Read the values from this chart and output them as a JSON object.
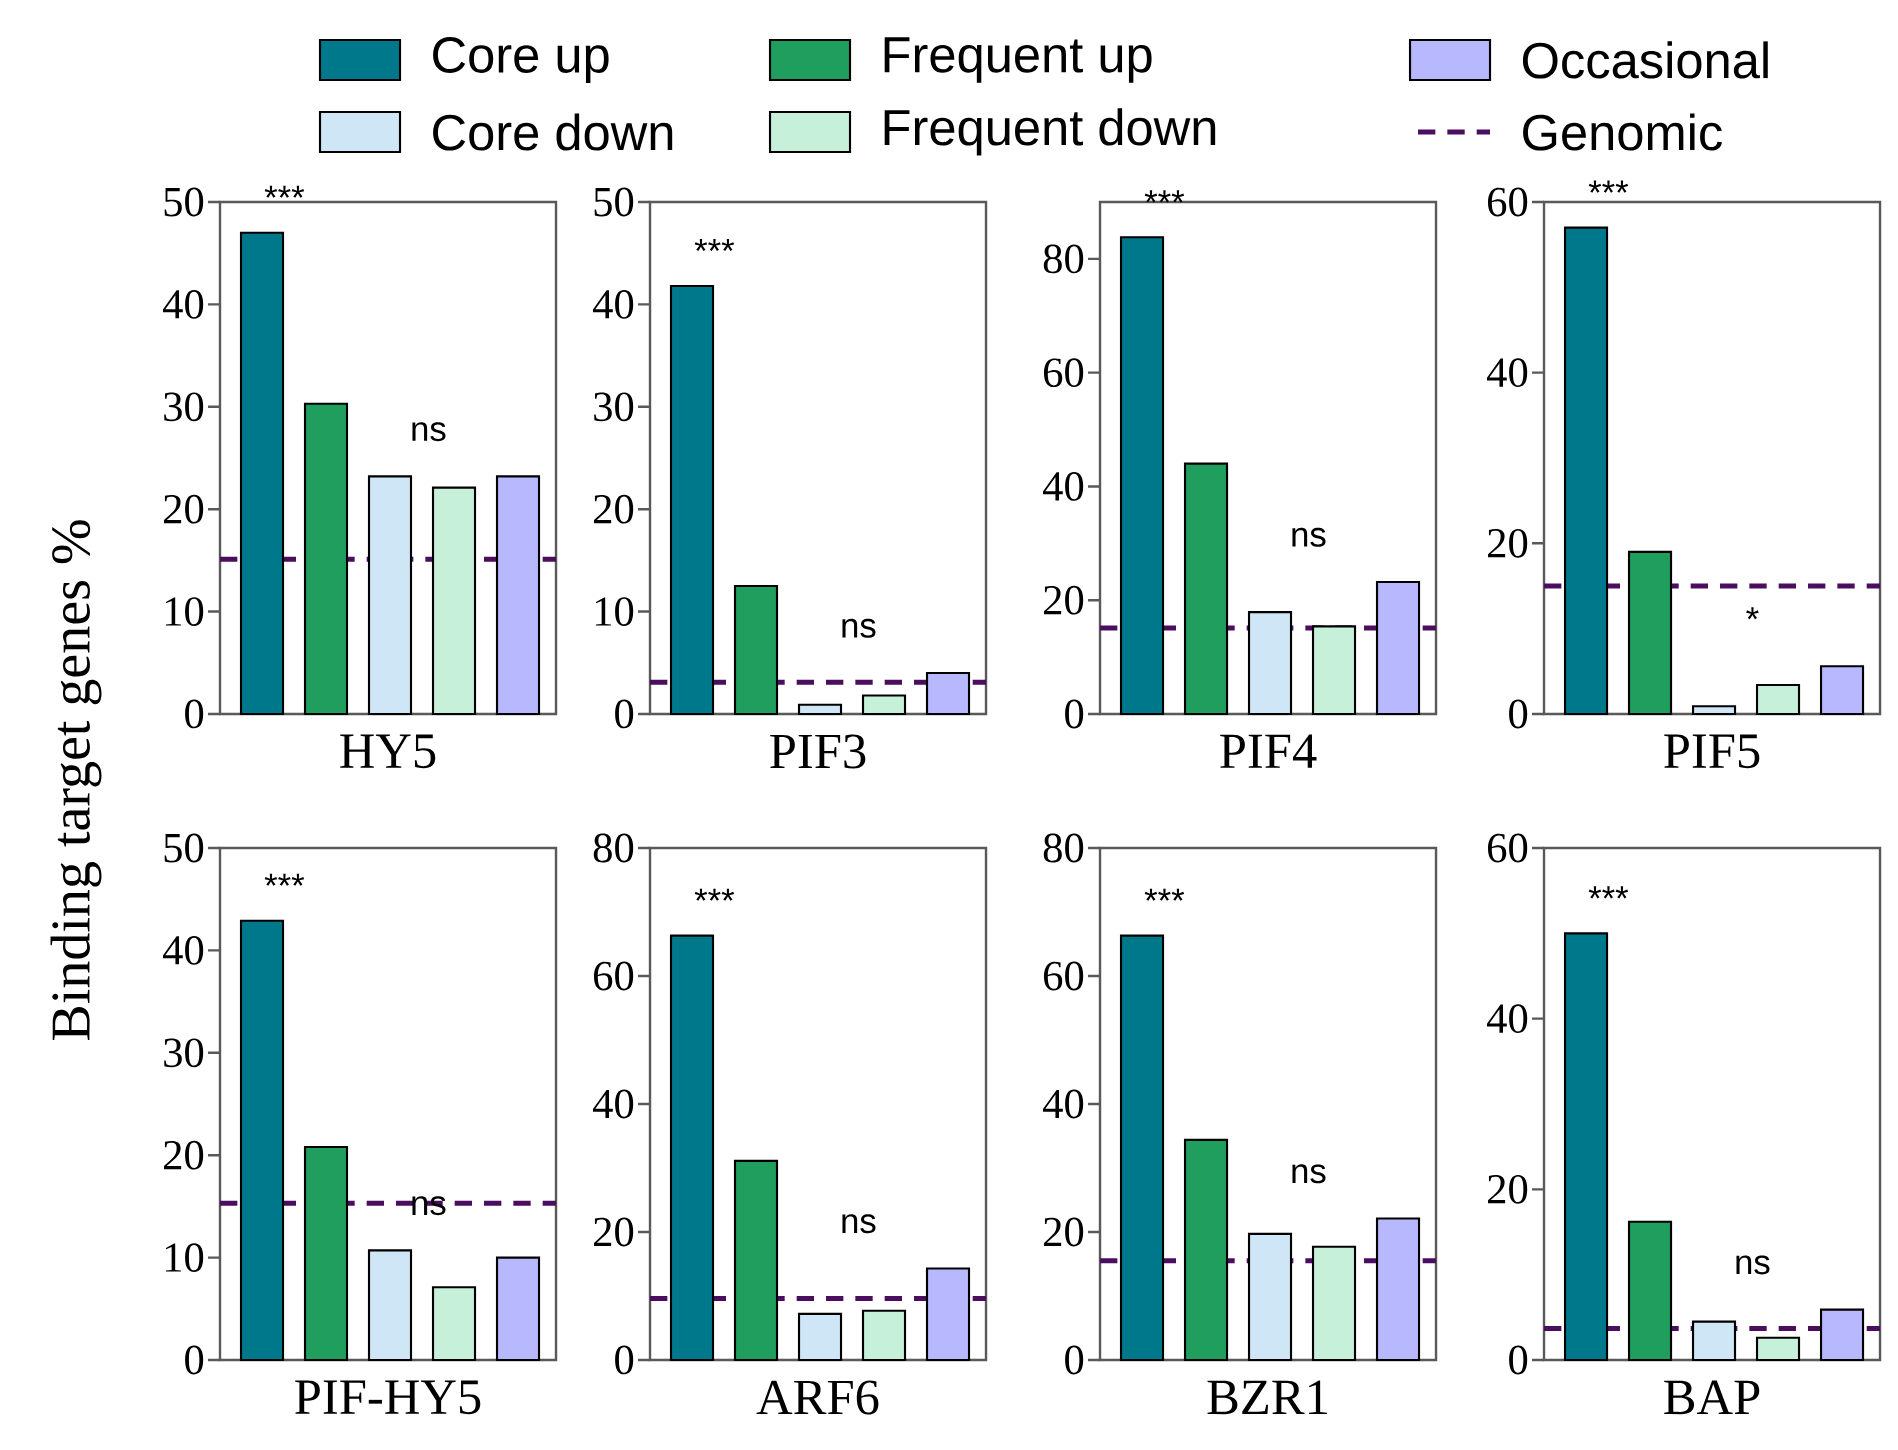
{
  "chart_data": [
    {
      "type": "bar",
      "xlabel": "HY5",
      "ylabel": "Binding target genes %",
      "legend": "top",
      "categories": [
        null
      ],
      "ylim": [
        0,
        50
      ],
      "yticks": [
        0,
        10,
        20,
        30,
        40,
        50
      ],
      "series": [
        {
          "name": "Core up",
          "color": "#00788c",
          "values": [
            47
          ]
        },
        {
          "name": "Frequent up",
          "color": "#1f9e5e",
          "values": [
            30.3
          ]
        },
        {
          "name": "Core down",
          "color": "#cfe6f7",
          "values": [
            23.2
          ]
        },
        {
          "name": "Frequent down",
          "color": "#c6f0da",
          "values": [
            22.1
          ]
        },
        {
          "name": "Occasional",
          "color": "#b8b8ff",
          "values": [
            23.2
          ]
        }
      ],
      "ref_lines": [
        {
          "axis": "y",
          "value": 15.1,
          "label": "Genomic",
          "color": "#4b0d5e",
          "line_style": "dashed"
        }
      ],
      "annotations": [
        "***",
        "ns"
      ]
    },
    {
      "type": "bar",
      "xlabel": "PIF3",
      "categories": [
        null
      ],
      "ylim": [
        0,
        50
      ],
      "yticks": [
        0,
        10,
        20,
        30,
        40,
        50
      ],
      "series": [
        {
          "color": "#00788c",
          "values": [
            41.8
          ]
        },
        {
          "color": "#1f9e5e",
          "values": [
            12.5
          ]
        },
        {
          "color": "#cfe6f7",
          "values": [
            0.9
          ]
        },
        {
          "color": "#c6f0da",
          "values": [
            1.8
          ]
        },
        {
          "color": "#b8b8ff",
          "values": [
            4.0
          ]
        }
      ],
      "ref_lines": [
        {
          "axis": "y",
          "value": 3.1,
          "color": "#4b0d5e",
          "line_style": "dashed"
        }
      ],
      "annotations": [
        "***",
        "ns"
      ]
    },
    {
      "type": "bar",
      "xlabel": "PIF4",
      "categories": [
        null
      ],
      "ylim": [
        0,
        90
      ],
      "yticks": [
        0,
        20,
        40,
        60,
        80
      ],
      "series": [
        {
          "color": "#00788c",
          "values": [
            83.8
          ]
        },
        {
          "color": "#1f9e5e",
          "values": [
            44
          ]
        },
        {
          "color": "#cfe6f7",
          "values": [
            17.9
          ]
        },
        {
          "color": "#c6f0da",
          "values": [
            15.4
          ]
        },
        {
          "color": "#b8b8ff",
          "values": [
            23.2
          ]
        }
      ],
      "ref_lines": [
        {
          "axis": "y",
          "value": 15.1,
          "color": "#4b0d5e",
          "line_style": "dashed"
        }
      ],
      "annotations": [
        "***",
        "ns"
      ]
    },
    {
      "type": "bar",
      "xlabel": "PIF5",
      "categories": [
        null
      ],
      "ylim": [
        0,
        60
      ],
      "yticks": [
        0,
        20,
        40,
        60
      ],
      "series": [
        {
          "color": "#00788c",
          "values": [
            57
          ]
        },
        {
          "color": "#1f9e5e",
          "values": [
            19
          ]
        },
        {
          "color": "#cfe6f7",
          "values": [
            0.9
          ]
        },
        {
          "color": "#c6f0da",
          "values": [
            3.4
          ]
        },
        {
          "color": "#b8b8ff",
          "values": [
            5.6
          ]
        }
      ],
      "ref_lines": [
        {
          "axis": "y",
          "value": 15,
          "color": "#4b0d5e",
          "line_style": "dashed"
        }
      ],
      "annotations": [
        "***",
        "*"
      ]
    },
    {
      "type": "bar",
      "xlabel": "PIF-HY5",
      "categories": [
        null
      ],
      "ylim": [
        0,
        50
      ],
      "yticks": [
        0,
        10,
        20,
        30,
        40,
        50
      ],
      "series": [
        {
          "color": "#00788c",
          "values": [
            42.9
          ]
        },
        {
          "color": "#1f9e5e",
          "values": [
            20.8
          ]
        },
        {
          "color": "#cfe6f7",
          "values": [
            10.7
          ]
        },
        {
          "color": "#c6f0da",
          "values": [
            7.1
          ]
        },
        {
          "color": "#b8b8ff",
          "values": [
            10
          ]
        }
      ],
      "ref_lines": [
        {
          "axis": "y",
          "value": 15.3,
          "color": "#4b0d5e",
          "line_style": "dashed"
        }
      ],
      "annotations": [
        "***",
        "ns"
      ]
    },
    {
      "type": "bar",
      "xlabel": "ARF6",
      "categories": [
        null
      ],
      "ylim": [
        0,
        80
      ],
      "yticks": [
        0,
        20,
        40,
        60,
        80
      ],
      "series": [
        {
          "color": "#00788c",
          "values": [
            66.3
          ]
        },
        {
          "color": "#1f9e5e",
          "values": [
            31.1
          ]
        },
        {
          "color": "#cfe6f7",
          "values": [
            7.2
          ]
        },
        {
          "color": "#c6f0da",
          "values": [
            7.7
          ]
        },
        {
          "color": "#b8b8ff",
          "values": [
            14.3
          ]
        }
      ],
      "ref_lines": [
        {
          "axis": "y",
          "value": 9.6,
          "color": "#4b0d5e",
          "line_style": "dashed"
        }
      ],
      "annotations": [
        "***",
        "ns"
      ]
    },
    {
      "type": "bar",
      "xlabel": "BZR1",
      "categories": [
        null
      ],
      "ylim": [
        0,
        80
      ],
      "yticks": [
        0,
        20,
        40,
        60,
        80
      ],
      "series": [
        {
          "color": "#00788c",
          "values": [
            66.3
          ]
        },
        {
          "color": "#1f9e5e",
          "values": [
            34.4
          ]
        },
        {
          "color": "#cfe6f7",
          "values": [
            19.7
          ]
        },
        {
          "color": "#c6f0da",
          "values": [
            17.7
          ]
        },
        {
          "color": "#b8b8ff",
          "values": [
            22.1
          ]
        }
      ],
      "ref_lines": [
        {
          "axis": "y",
          "value": 15.5,
          "color": "#4b0d5e",
          "line_style": "dashed"
        }
      ],
      "annotations": [
        "***",
        "ns"
      ]
    },
    {
      "type": "bar",
      "xlabel": "BAP",
      "categories": [
        null
      ],
      "ylim": [
        0,
        60
      ],
      "yticks": [
        0,
        20,
        40,
        60
      ],
      "series": [
        {
          "color": "#00788c",
          "values": [
            50
          ]
        },
        {
          "color": "#1f9e5e",
          "values": [
            16.2
          ]
        },
        {
          "color": "#cfe6f7",
          "values": [
            4.5
          ]
        },
        {
          "color": "#c6f0da",
          "values": [
            2.6
          ]
        },
        {
          "color": "#b8b8ff",
          "values": [
            5.9
          ]
        }
      ],
      "ref_lines": [
        {
          "axis": "y",
          "value": 3.7,
          "color": "#4b0d5e",
          "line_style": "dashed"
        }
      ],
      "annotations": [
        "***",
        "ns"
      ]
    }
  ]
}
